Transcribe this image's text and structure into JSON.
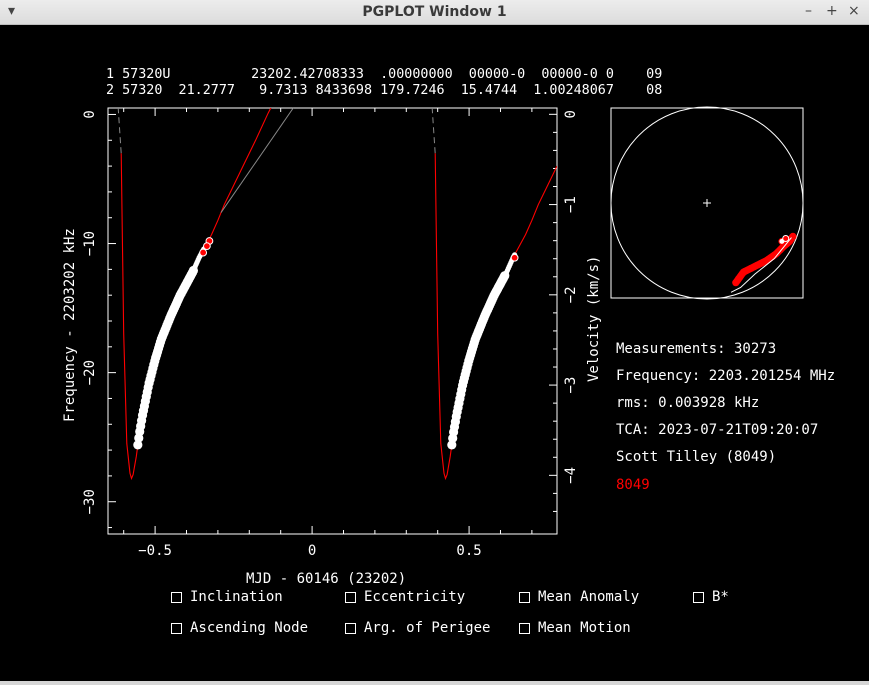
{
  "window": {
    "title": "PGPLOT Window 1",
    "menu_icon": "chevron-down-icon",
    "controls": {
      "minimize": "–",
      "maximize": "+",
      "close": "×"
    }
  },
  "tle": {
    "line1": "1 57320U          23202.42708333  .00000000  00000-0  00000-0 0    09",
    "line2": "2 57320  21.2777   9.7313 8433698 179.7246  15.4744  1.00248067    08"
  },
  "stats": {
    "measurements": "Measurements: 30273",
    "frequency": "Frequency: 2203.201254 MHz",
    "rms": "rms: 0.003928 kHz",
    "tca": "TCA: 2023-07-21T09:20:07",
    "observer": "Scott Tilley (8049)",
    "site": "8049"
  },
  "colors": {
    "background": "#000000",
    "axes": "#ffffff",
    "model": "#ff0000",
    "measurement": "#ffffff",
    "site": "#ff0000"
  },
  "checkboxes": [
    {
      "label": "Inclination",
      "checked": false
    },
    {
      "label": "Eccentricity",
      "checked": false
    },
    {
      "label": "Mean Anomaly",
      "checked": false
    },
    {
      "label": "B*",
      "checked": false
    },
    {
      "label": "Ascending Node",
      "checked": false
    },
    {
      "label": "Arg. of Perigee",
      "checked": false
    },
    {
      "label": "Mean Motion",
      "checked": false
    }
  ],
  "chart_data": [
    {
      "type": "scatter",
      "xlabel": "MJD - 60146 (23202)",
      "ylabel": "Frequency - 2203202 kHz",
      "y2label": "Velocity (km/s)",
      "xlim": [
        -0.65,
        0.78
      ],
      "ylim": [
        -32.5,
        0.5
      ],
      "y2lim": [
        -4.65,
        0.07
      ],
      "xticks": [
        -0.5,
        0,
        0.5
      ],
      "yticks": [
        0,
        -10,
        -20,
        -30
      ],
      "y2ticks": [
        0,
        -1,
        -2,
        -3,
        -4
      ],
      "series": [
        {
          "kind": "model_curve_pass1",
          "color": "#ff0000",
          "x": [
            -0.608,
            -0.6,
            -0.59,
            -0.58,
            -0.575,
            -0.57,
            -0.56,
            -0.55,
            -0.54,
            -0.52,
            -0.5,
            -0.48,
            -0.45,
            -0.42,
            -0.4,
            -0.38,
            -0.36,
            -0.34,
            -0.32,
            -0.3,
            -0.28,
            -0.25,
            -0.22,
            -0.18,
            -0.14,
            -0.1,
            -0.06
          ],
          "y": [
            -3,
            -17,
            -25.5,
            -27.8,
            -28.2,
            -27.9,
            -26.5,
            -24.7,
            -23.3,
            -20.9,
            -19.0,
            -17.4,
            -15.6,
            -14.0,
            -13.1,
            -12.2,
            -11.1,
            -10.2,
            -9.3,
            -8.2,
            -7.0,
            -5.5,
            -4.0,
            -2.0,
            0.1,
            2,
            4
          ]
        },
        {
          "kind": "model_curve_pass2",
          "color": "#ff0000",
          "x": [
            0.392,
            0.4,
            0.41,
            0.42,
            0.425,
            0.43,
            0.44,
            0.45,
            0.46,
            0.48,
            0.5,
            0.52,
            0.55,
            0.58,
            0.6,
            0.62,
            0.64,
            0.66,
            0.68,
            0.7,
            0.72,
            0.75,
            0.78
          ],
          "y": [
            -3,
            -17,
            -25.5,
            -27.8,
            -28.2,
            -27.9,
            -26.5,
            -24.7,
            -23.3,
            -20.9,
            -19.0,
            -17.4,
            -15.6,
            -14.0,
            -13.1,
            -12.2,
            -11.1,
            -10.2,
            -9.3,
            -8.2,
            -7.0,
            -5.5,
            -4.0
          ]
        },
        {
          "kind": "measurements_pass1",
          "color": "#ffffff",
          "x_range": [
            -0.555,
            -0.345
          ],
          "y_range": [
            -24.8,
            -10.8
          ]
        },
        {
          "kind": "measurements_pass2",
          "color": "#ffffff",
          "x_range": [
            0.445,
            0.645
          ],
          "y_range": [
            -24.5,
            -11.3
          ]
        },
        {
          "kind": "highlighted_points",
          "color": "#ff0000",
          "x": [
            -0.327,
            -0.335,
            -0.347,
            0.645
          ],
          "y": [
            -9.8,
            -10.2,
            -10.7,
            -11.1
          ]
        }
      ]
    },
    {
      "type": "scatter",
      "title": "",
      "description_free": true,
      "series": [
        {
          "kind": "ground_track",
          "color": "#ff0000",
          "x": [
            0.3,
            0.38,
            0.5,
            0.62,
            0.72,
            0.8,
            0.86,
            0.9
          ],
          "y": [
            -0.83,
            -0.72,
            -0.66,
            -0.6,
            -0.53,
            -0.45,
            -0.4,
            -0.34
          ]
        },
        {
          "kind": "observer",
          "color": "#ffffff",
          "x": [
            0
          ],
          "y": [
            0
          ]
        }
      ]
    }
  ]
}
